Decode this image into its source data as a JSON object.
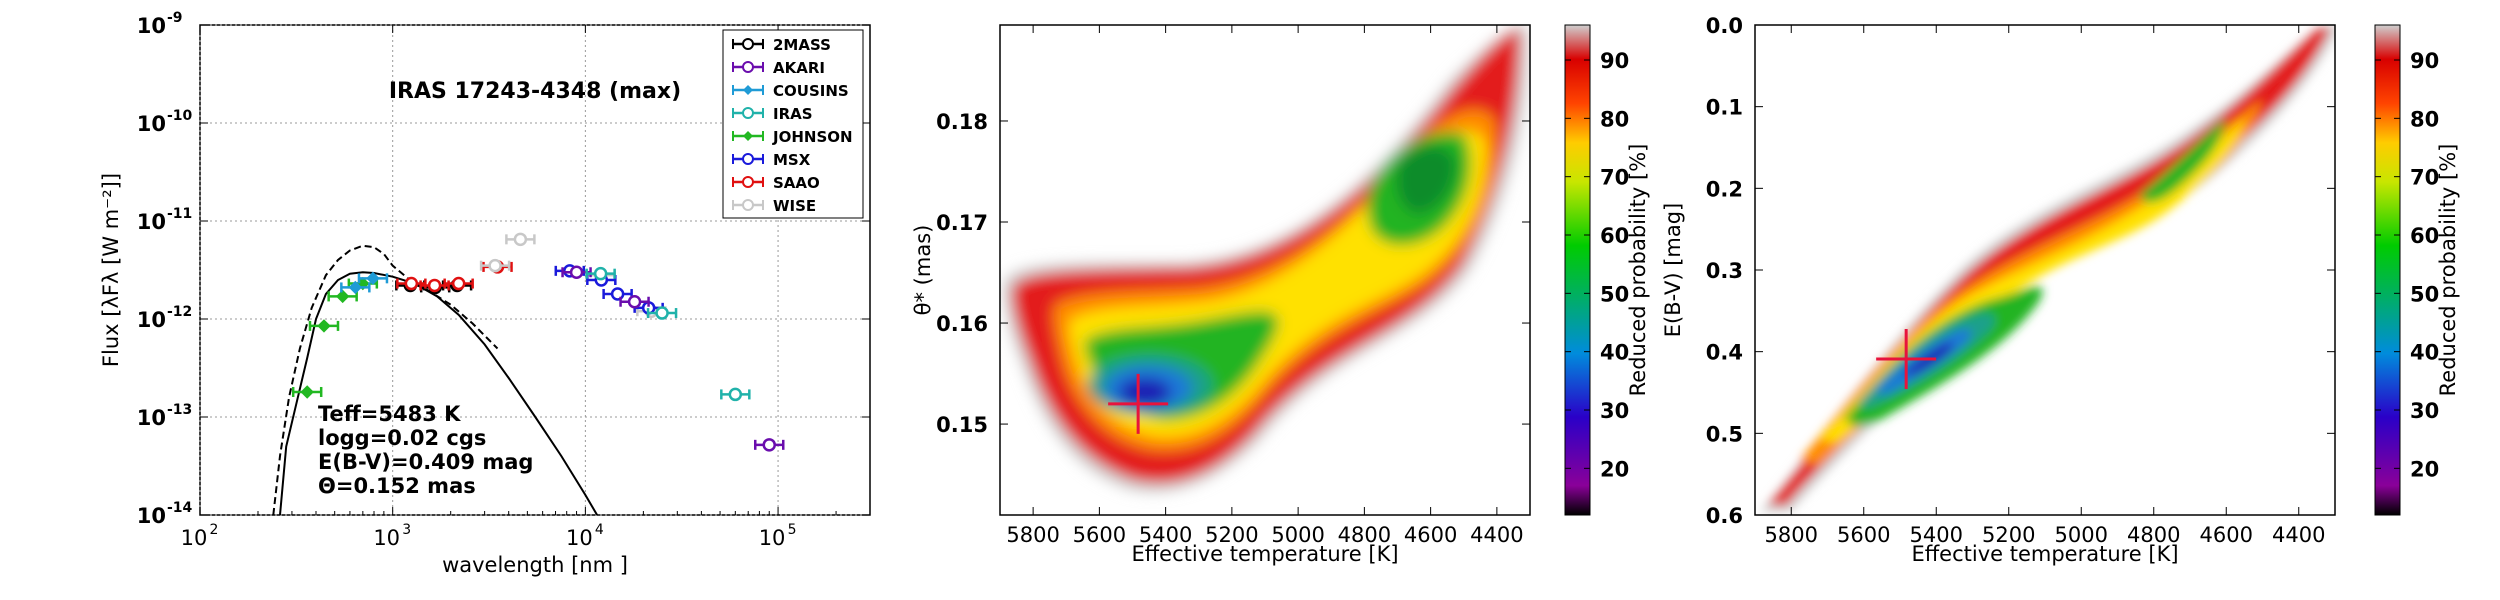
{
  "chart_data": [
    {
      "type": "scatter",
      "title": "IRAS 17243-4348 (max)",
      "xlabel": "wavelength [nm ]",
      "ylabel": "Flux [λFλ [W m⁻²]]",
      "xscale": "log",
      "yscale": "log",
      "xlim": [
        100,
        300000
      ],
      "ylim": [
        1e-14,
        1e-09
      ],
      "grid": true,
      "x_ticks": [
        "10",
        "10",
        "10",
        "10",
        "10"
      ],
      "x_tick_exps": [
        "2",
        "3",
        "4",
        "5"
      ],
      "y_ticks": [
        "10",
        "10",
        "10",
        "10",
        "10",
        "10"
      ],
      "y_tick_exps": [
        "-14",
        "-13",
        "-12",
        "-11",
        "-10",
        "-9"
      ],
      "legend_position": "top-right",
      "legend": [
        {
          "name": "2MASS",
          "color": "#000000",
          "marker": "circle"
        },
        {
          "name": "AKARI",
          "color": "#6a0dad",
          "marker": "circle"
        },
        {
          "name": "COUSINS",
          "color": "#1f9bd6",
          "marker": "diamond"
        },
        {
          "name": "IRAS",
          "color": "#20b2aa",
          "marker": "circle"
        },
        {
          "name": "JOHNSON",
          "color": "#22b822",
          "marker": "diamond"
        },
        {
          "name": "MSX",
          "color": "#1a1adb",
          "marker": "circle"
        },
        {
          "name": "SAAO",
          "color": "#e01010",
          "marker": "circle"
        },
        {
          "name": "WISE",
          "color": "#c8c8c8",
          "marker": "circle"
        }
      ],
      "series": [
        {
          "name": "JOHNSON",
          "color": "#22b822",
          "marker": "diamond",
          "points": [
            [
              360,
              1.8e-13
            ],
            [
              440,
              8.5e-13
            ],
            [
              550,
              1.7e-12
            ],
            [
              700,
              2.3e-12
            ]
          ]
        },
        {
          "name": "COUSINS",
          "color": "#1f9bd6",
          "marker": "diamond",
          "points": [
            [
              640,
              2.1e-12
            ],
            [
              790,
              2.6e-12
            ]
          ]
        },
        {
          "name": "2MASS",
          "color": "#000000",
          "marker": "circle",
          "points": [
            [
              1235,
              2.2e-12
            ],
            [
              1662,
              2.1e-12
            ],
            [
              2159,
              2.2e-12
            ]
          ]
        },
        {
          "name": "SAAO",
          "color": "#e01010",
          "marker": "circle",
          "points": [
            [
              1250,
              2.3e-12
            ],
            [
              1650,
              2.2e-12
            ],
            [
              2200,
              2.3e-12
            ],
            [
              3500,
              3.4e-12
            ]
          ]
        },
        {
          "name": "WISE",
          "color": "#c8c8c8",
          "marker": "circle",
          "points": [
            [
              3400,
              3.5e-12
            ],
            [
              4600,
              6.5e-12
            ],
            [
              12000,
              2.8e-12
            ],
            [
              22000,
              1.2e-12
            ]
          ]
        },
        {
          "name": "MSX",
          "color": "#1a1adb",
          "marker": "circle",
          "points": [
            [
              8300,
              3.1e-12
            ],
            [
              12100,
              2.5e-12
            ],
            [
              14700,
              1.8e-12
            ],
            [
              21300,
              1.3e-12
            ]
          ]
        },
        {
          "name": "AKARI",
          "color": "#6a0dad",
          "marker": "circle",
          "points": [
            [
              9000,
              3e-12
            ],
            [
              18000,
              1.5e-12
            ],
            [
              90000,
              5.2e-14
            ]
          ]
        },
        {
          "name": "IRAS",
          "color": "#20b2aa",
          "marker": "circle",
          "points": [
            [
              12000,
              2.9e-12
            ],
            [
              25000,
              1.15e-12
            ],
            [
              60000,
              1.7e-13
            ]
          ]
        }
      ],
      "model_curves": [
        {
          "style": "solid",
          "color": "#000000",
          "points": [
            [
              260,
              1e-14
            ],
            [
              280,
              5e-14
            ],
            [
              320,
              1.5e-13
            ],
            [
              360,
              4e-13
            ],
            [
              400,
              1e-12
            ],
            [
              450,
              1.8e-12
            ],
            [
              520,
              2.5e-12
            ],
            [
              600,
              2.9e-12
            ],
            [
              700,
              3e-12
            ],
            [
              800,
              2.95e-12
            ],
            [
              1000,
              2.7e-12
            ],
            [
              1300,
              2.3e-12
            ],
            [
              1700,
              1.7e-12
            ],
            [
              2200,
              1.1e-12
            ],
            [
              3000,
              5.5e-13
            ],
            [
              4000,
              2.5e-13
            ],
            [
              5500,
              1e-13
            ],
            [
              7500,
              4e-14
            ],
            [
              10000,
              1.6e-14
            ],
            [
              11500,
              1e-14
            ]
          ]
        },
        {
          "style": "dashed",
          "color": "#000000",
          "points": [
            [
              240,
              1e-14
            ],
            [
              260,
              4e-14
            ],
            [
              290,
              1.6e-13
            ],
            [
              330,
              5e-13
            ],
            [
              380,
              1.3e-12
            ],
            [
              450,
              2.8e-12
            ],
            [
              520,
              4e-12
            ],
            [
              600,
              5e-12
            ],
            [
              700,
              5.6e-12
            ],
            [
              800,
              5.4e-12
            ],
            [
              900,
              4.6e-12
            ],
            [
              1000,
              3.5e-12
            ],
            [
              1200,
              2.6e-12
            ],
            [
              1500,
              2e-12
            ],
            [
              2000,
              1.4e-12
            ],
            [
              2600,
              9e-13
            ],
            [
              3500,
              5e-13
            ]
          ]
        }
      ],
      "annotations": [
        "Teff=5483 K",
        "logg=0.02 cgs",
        "E(B-V)=0.409 mag",
        "Θ=0.152 mas"
      ]
    },
    {
      "type": "heatmap",
      "xlabel": "Effective temperature [K]",
      "ylabel": "θ* (mas)",
      "xlim": [
        5900,
        4300
      ],
      "ylim": [
        0.141,
        0.1895
      ],
      "x_ticks": [
        5800,
        5600,
        5400,
        5200,
        5000,
        4800,
        4600,
        4400
      ],
      "y_ticks": [
        "0.15",
        "0.16",
        "0.17",
        "0.18"
      ],
      "y_tick_values": [
        0.15,
        0.16,
        0.17,
        0.18
      ],
      "best_fit": {
        "teff": 5483,
        "theta": 0.152
      },
      "colorbar": {
        "label": "Reduced probability [%]",
        "ticks": [
          20,
          30,
          40,
          50,
          60,
          70,
          80,
          90
        ],
        "range": [
          12,
          96
        ]
      },
      "ridge": [
        [
          5860,
          0.16
        ],
        [
          5700,
          0.1555
        ],
        [
          5483,
          0.152
        ],
        [
          5300,
          0.152
        ],
        [
          5150,
          0.1585
        ],
        [
          5000,
          0.1645
        ],
        [
          4800,
          0.1745
        ],
        [
          4650,
          0.1765
        ],
        [
          4500,
          0.1805
        ],
        [
          4380,
          0.1885
        ]
      ]
    },
    {
      "type": "heatmap",
      "xlabel": "Effective temperature [K]",
      "ylabel": "E(B-V) [mag]",
      "xlim": [
        5900,
        4300
      ],
      "ylim": [
        0.6,
        0.0
      ],
      "x_ticks": [
        5800,
        5600,
        5400,
        5200,
        5000,
        4800,
        4600,
        4400
      ],
      "y_ticks": [
        "0.0",
        "0.1",
        "0.2",
        "0.3",
        "0.4",
        "0.5",
        "0.6"
      ],
      "y_tick_values": [
        0.0,
        0.1,
        0.2,
        0.3,
        0.4,
        0.5,
        0.6
      ],
      "best_fit": {
        "teff": 5483,
        "ebv": 0.409
      },
      "colorbar": {
        "label": "Reduced probability [%]",
        "ticks": [
          20,
          30,
          40,
          50,
          60,
          70,
          80,
          90
        ],
        "range": [
          12,
          96
        ]
      },
      "ridge": [
        [
          5850,
          0.585
        ],
        [
          5600,
          0.47
        ],
        [
          5483,
          0.409
        ],
        [
          5300,
          0.325
        ],
        [
          5100,
          0.255
        ],
        [
          4900,
          0.205
        ],
        [
          4700,
          0.135
        ],
        [
          4500,
          0.055
        ],
        [
          4380,
          0.0
        ]
      ]
    }
  ]
}
